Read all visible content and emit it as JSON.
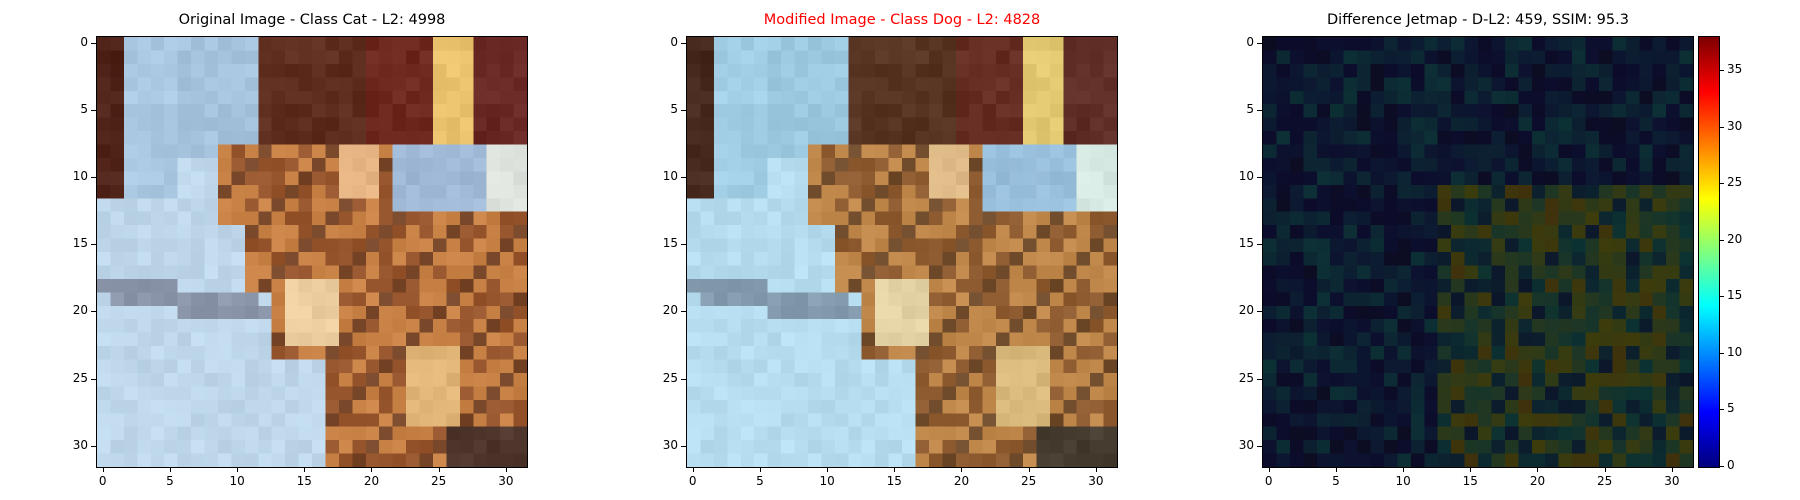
{
  "panels": [
    {
      "title": "Original Image - Class Cat - L2: 4998",
      "title_color": "#000000",
      "kind": "original",
      "x_ticks": [
        "0",
        "5",
        "10",
        "15",
        "20",
        "25",
        "30"
      ],
      "y_ticks": [
        "0",
        "5",
        "10",
        "15",
        "20",
        "25",
        "30"
      ]
    },
    {
      "title": "Modified Image - Class Dog - L2: 4828",
      "title_color": "#ff0000",
      "kind": "modified",
      "x_ticks": [
        "0",
        "5",
        "10",
        "15",
        "20",
        "25",
        "30"
      ],
      "y_ticks": [
        "0",
        "5",
        "10",
        "15",
        "20",
        "25",
        "30"
      ]
    },
    {
      "title": "Difference Jetmap - D-L2: 459, SSIM: 95.3",
      "title_color": "#000000",
      "kind": "difference",
      "x_ticks": [
        "0",
        "5",
        "10",
        "15",
        "20",
        "25",
        "30"
      ],
      "y_ticks": [
        "0",
        "5",
        "10",
        "15",
        "20",
        "25",
        "30"
      ]
    }
  ],
  "colorbar": {
    "ticks": [
      "0",
      "5",
      "10",
      "15",
      "20",
      "25",
      "30",
      "35"
    ],
    "min": 0,
    "max": 38,
    "colormap": "jet"
  },
  "image_grid": {
    "rows": 32,
    "cols": 32
  }
}
